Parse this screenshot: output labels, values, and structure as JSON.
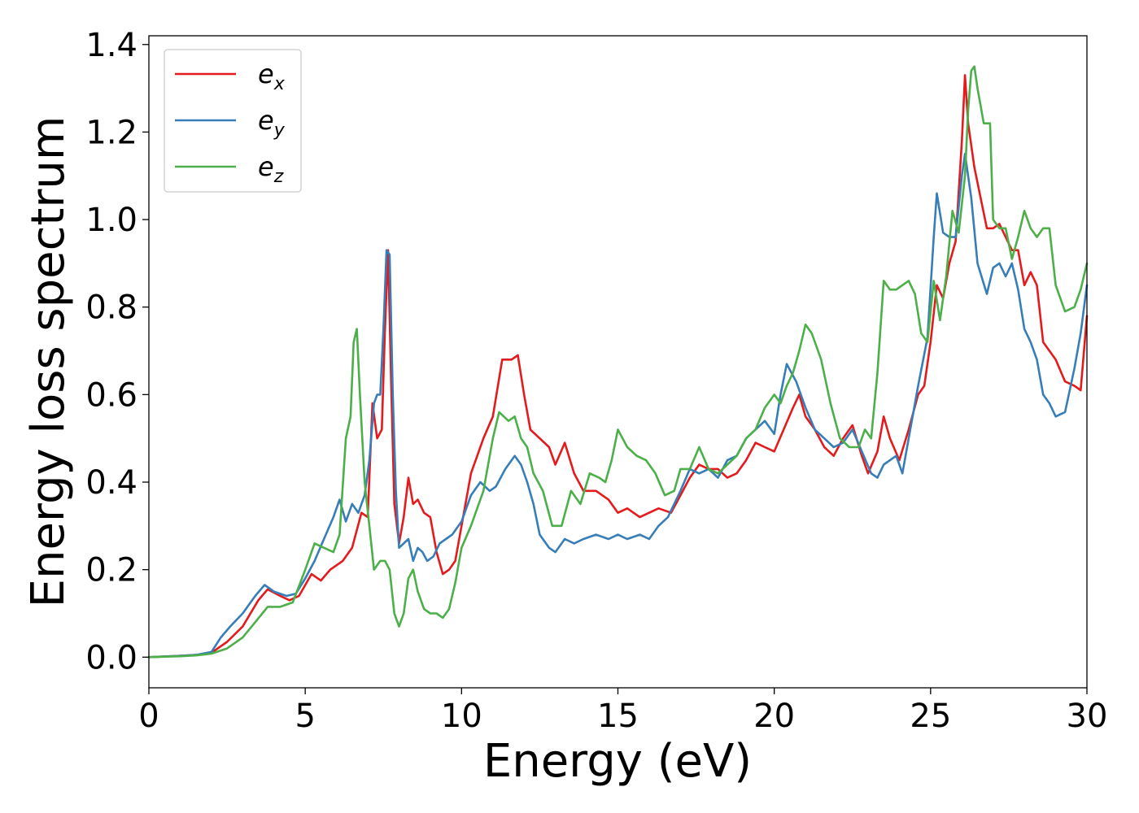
{
  "chart_data": {
    "type": "line",
    "xlabel": "Energy (eV)",
    "ylabel": "Energy loss spectrum",
    "xlim": [
      0,
      30
    ],
    "ylim": [
      -0.07,
      1.42
    ],
    "xticks": [
      0,
      5,
      10,
      15,
      20,
      25,
      30
    ],
    "xtick_labels": [
      "0",
      "5",
      "10",
      "15",
      "20",
      "25",
      "30"
    ],
    "yticks": [
      0.0,
      0.2,
      0.4,
      0.6,
      0.8,
      1.0,
      1.2,
      1.4
    ],
    "ytick_labels": [
      "0.0",
      "0.2",
      "0.4",
      "0.6",
      "0.8",
      "1.0",
      "1.2",
      "1.4"
    ],
    "grid": false,
    "legend_position": "top-left",
    "series": [
      {
        "name": "e",
        "subscript": "x",
        "color": "#e41a1c",
        "x": [
          0,
          1,
          1.5,
          2.0,
          2.5,
          3.0,
          3.5,
          3.8,
          4.2,
          4.5,
          4.8,
          5.2,
          5.5,
          5.8,
          6.2,
          6.5,
          6.8,
          7.0,
          7.15,
          7.3,
          7.45,
          7.55,
          7.65,
          7.75,
          7.85,
          8.0,
          8.15,
          8.3,
          8.45,
          8.6,
          8.8,
          9.0,
          9.2,
          9.4,
          9.6,
          9.8,
          10.0,
          10.3,
          10.7,
          11.0,
          11.3,
          11.6,
          11.8,
          12.0,
          12.2,
          12.5,
          12.8,
          13.0,
          13.3,
          13.6,
          13.9,
          14.3,
          14.7,
          15.0,
          15.3,
          15.7,
          16.0,
          16.3,
          16.7,
          17.0,
          17.3,
          17.6,
          17.9,
          18.2,
          18.5,
          18.8,
          19.1,
          19.4,
          19.7,
          20.0,
          20.3,
          20.6,
          20.8,
          21.0,
          21.3,
          21.6,
          21.9,
          22.2,
          22.5,
          22.8,
          23.0,
          23.3,
          23.5,
          23.7,
          24.0,
          24.3,
          24.6,
          24.8,
          25.0,
          25.2,
          25.4,
          25.6,
          25.8,
          26.0,
          26.1,
          26.2,
          26.4,
          26.6,
          26.8,
          27.0,
          27.2,
          27.4,
          27.6,
          27.8,
          28.0,
          28.2,
          28.4,
          28.6,
          28.8,
          29.0,
          29.3,
          29.6,
          29.8,
          30.0
        ],
        "y": [
          0.0,
          0.003,
          0.005,
          0.01,
          0.035,
          0.07,
          0.13,
          0.155,
          0.14,
          0.13,
          0.14,
          0.19,
          0.175,
          0.2,
          0.22,
          0.25,
          0.33,
          0.32,
          0.58,
          0.5,
          0.52,
          0.75,
          0.93,
          0.62,
          0.35,
          0.26,
          0.32,
          0.41,
          0.35,
          0.36,
          0.33,
          0.32,
          0.24,
          0.19,
          0.2,
          0.22,
          0.3,
          0.42,
          0.5,
          0.55,
          0.68,
          0.68,
          0.69,
          0.6,
          0.52,
          0.5,
          0.48,
          0.44,
          0.49,
          0.42,
          0.38,
          0.38,
          0.36,
          0.33,
          0.34,
          0.32,
          0.33,
          0.34,
          0.33,
          0.37,
          0.41,
          0.44,
          0.43,
          0.43,
          0.41,
          0.42,
          0.45,
          0.49,
          0.48,
          0.47,
          0.52,
          0.57,
          0.6,
          0.55,
          0.52,
          0.48,
          0.46,
          0.5,
          0.53,
          0.46,
          0.42,
          0.47,
          0.55,
          0.5,
          0.45,
          0.52,
          0.6,
          0.62,
          0.72,
          0.85,
          0.82,
          0.9,
          0.95,
          1.18,
          1.33,
          1.22,
          1.12,
          1.05,
          0.98,
          0.98,
          0.99,
          0.96,
          0.93,
          0.93,
          0.85,
          0.88,
          0.85,
          0.72,
          0.7,
          0.68,
          0.63,
          0.62,
          0.61,
          0.78
        ]
      },
      {
        "name": "e",
        "subscript": "y",
        "color": "#377eb8",
        "x": [
          0,
          1,
          1.5,
          2.0,
          2.3,
          2.6,
          3.0,
          3.4,
          3.7,
          4.0,
          4.4,
          4.7,
          5.0,
          5.3,
          5.6,
          5.9,
          6.1,
          6.3,
          6.5,
          6.7,
          6.9,
          7.05,
          7.2,
          7.3,
          7.4,
          7.5,
          7.6,
          7.7,
          7.8,
          7.9,
          8.0,
          8.15,
          8.3,
          8.45,
          8.6,
          8.75,
          8.9,
          9.1,
          9.3,
          9.5,
          9.7,
          10.0,
          10.3,
          10.6,
          10.9,
          11.1,
          11.4,
          11.7,
          11.9,
          12.1,
          12.3,
          12.5,
          12.8,
          13.0,
          13.3,
          13.6,
          13.9,
          14.3,
          14.7,
          15.0,
          15.3,
          15.7,
          16.0,
          16.3,
          16.6,
          17.0,
          17.3,
          17.6,
          17.9,
          18.2,
          18.5,
          18.8,
          19.1,
          19.4,
          19.7,
          20.0,
          20.2,
          20.4,
          20.7,
          21.0,
          21.3,
          21.6,
          21.9,
          22.2,
          22.5,
          22.8,
          23.1,
          23.3,
          23.5,
          23.7,
          23.9,
          24.1,
          24.3,
          24.6,
          24.9,
          25.1,
          25.2,
          25.4,
          25.6,
          25.8,
          26.0,
          26.1,
          26.3,
          26.5,
          26.8,
          27.0,
          27.2,
          27.4,
          27.6,
          27.8,
          28.0,
          28.2,
          28.4,
          28.6,
          28.8,
          29.0,
          29.3,
          29.6,
          29.8,
          30.0
        ],
        "y": [
          0.0,
          0.003,
          0.005,
          0.012,
          0.045,
          0.07,
          0.1,
          0.14,
          0.165,
          0.15,
          0.14,
          0.145,
          0.18,
          0.22,
          0.27,
          0.32,
          0.36,
          0.31,
          0.35,
          0.33,
          0.37,
          0.45,
          0.58,
          0.6,
          0.6,
          0.75,
          0.93,
          0.92,
          0.6,
          0.38,
          0.25,
          0.26,
          0.27,
          0.22,
          0.25,
          0.24,
          0.22,
          0.23,
          0.26,
          0.27,
          0.28,
          0.31,
          0.37,
          0.4,
          0.38,
          0.39,
          0.43,
          0.46,
          0.44,
          0.4,
          0.35,
          0.28,
          0.25,
          0.24,
          0.27,
          0.26,
          0.27,
          0.28,
          0.27,
          0.28,
          0.27,
          0.28,
          0.27,
          0.3,
          0.32,
          0.38,
          0.43,
          0.42,
          0.43,
          0.41,
          0.45,
          0.46,
          0.5,
          0.52,
          0.54,
          0.51,
          0.6,
          0.67,
          0.63,
          0.57,
          0.52,
          0.5,
          0.48,
          0.49,
          0.52,
          0.47,
          0.42,
          0.41,
          0.44,
          0.45,
          0.46,
          0.42,
          0.5,
          0.62,
          0.73,
          0.96,
          1.06,
          0.97,
          0.96,
          0.96,
          1.1,
          1.15,
          1.05,
          0.9,
          0.83,
          0.89,
          0.9,
          0.87,
          0.9,
          0.84,
          0.75,
          0.72,
          0.68,
          0.6,
          0.58,
          0.55,
          0.56,
          0.66,
          0.74,
          0.85
        ]
      },
      {
        "name": "e",
        "subscript": "z",
        "color": "#4daf4a",
        "x": [
          0,
          1,
          1.5,
          2.0,
          2.5,
          3.0,
          3.4,
          3.8,
          4.2,
          4.6,
          5.0,
          5.3,
          5.6,
          5.9,
          6.1,
          6.3,
          6.45,
          6.55,
          6.65,
          6.75,
          6.9,
          7.05,
          7.2,
          7.4,
          7.55,
          7.7,
          7.85,
          8.0,
          8.15,
          8.3,
          8.45,
          8.6,
          8.8,
          9.0,
          9.2,
          9.4,
          9.6,
          9.8,
          10.0,
          10.3,
          10.7,
          11.0,
          11.2,
          11.5,
          11.7,
          11.9,
          12.1,
          12.3,
          12.6,
          12.9,
          13.2,
          13.5,
          13.8,
          14.1,
          14.4,
          14.6,
          14.8,
          15.0,
          15.3,
          15.6,
          15.9,
          16.2,
          16.5,
          16.8,
          17.0,
          17.3,
          17.6,
          17.9,
          18.2,
          18.5,
          18.8,
          19.1,
          19.4,
          19.7,
          20.0,
          20.2,
          20.4,
          20.6,
          20.8,
          21.0,
          21.2,
          21.5,
          21.8,
          22.1,
          22.4,
          22.7,
          22.9,
          23.1,
          23.3,
          23.5,
          23.7,
          23.9,
          24.1,
          24.3,
          24.5,
          24.7,
          24.9,
          25.1,
          25.3,
          25.5,
          25.7,
          25.9,
          26.1,
          26.2,
          26.3,
          26.4,
          26.5,
          26.7,
          26.9,
          27.0,
          27.2,
          27.4,
          27.6,
          27.8,
          28.0,
          28.2,
          28.4,
          28.6,
          28.8,
          29.0,
          29.3,
          29.6,
          29.8,
          30.0
        ],
        "y": [
          0.0,
          0.002,
          0.004,
          0.008,
          0.02,
          0.045,
          0.08,
          0.115,
          0.115,
          0.125,
          0.2,
          0.26,
          0.25,
          0.24,
          0.28,
          0.5,
          0.55,
          0.72,
          0.75,
          0.6,
          0.4,
          0.3,
          0.2,
          0.22,
          0.22,
          0.2,
          0.1,
          0.07,
          0.1,
          0.18,
          0.2,
          0.15,
          0.11,
          0.1,
          0.1,
          0.09,
          0.11,
          0.17,
          0.25,
          0.3,
          0.38,
          0.5,
          0.56,
          0.54,
          0.55,
          0.5,
          0.48,
          0.42,
          0.38,
          0.3,
          0.3,
          0.38,
          0.35,
          0.42,
          0.41,
          0.4,
          0.45,
          0.52,
          0.48,
          0.46,
          0.45,
          0.42,
          0.37,
          0.38,
          0.43,
          0.43,
          0.48,
          0.43,
          0.42,
          0.44,
          0.46,
          0.5,
          0.52,
          0.57,
          0.6,
          0.58,
          0.62,
          0.65,
          0.7,
          0.76,
          0.74,
          0.68,
          0.58,
          0.5,
          0.48,
          0.48,
          0.52,
          0.5,
          0.65,
          0.86,
          0.84,
          0.84,
          0.85,
          0.86,
          0.83,
          0.74,
          0.72,
          0.86,
          0.77,
          0.87,
          1.02,
          0.97,
          1.1,
          1.25,
          1.34,
          1.35,
          1.3,
          1.22,
          1.22,
          1.0,
          0.98,
          0.98,
          0.91,
          0.96,
          1.02,
          0.98,
          0.96,
          0.98,
          0.98,
          0.85,
          0.79,
          0.8,
          0.84,
          0.9
        ]
      }
    ]
  }
}
